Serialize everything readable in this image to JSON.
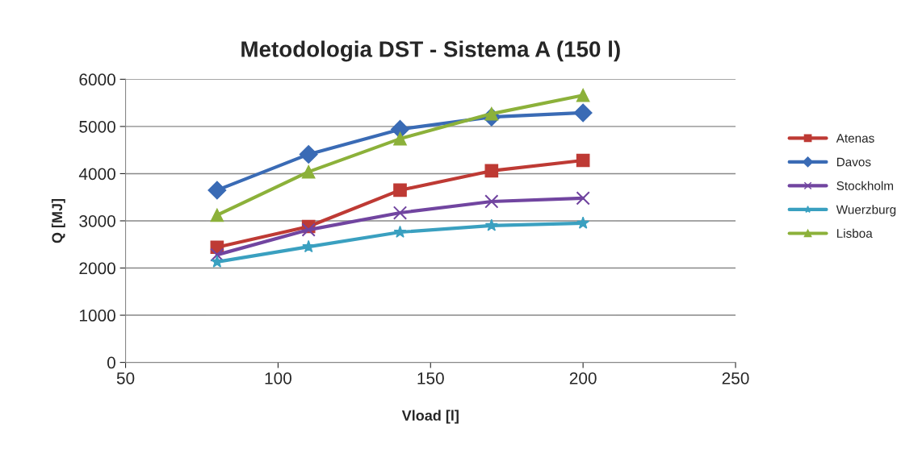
{
  "chart_data": {
    "type": "line",
    "title": "Metodologia DST - Sistema A (150 l)",
    "xlabel": "Vload [l]",
    "ylabel": "Q [MJ]",
    "x": [
      80,
      110,
      140,
      170,
      200
    ],
    "series": [
      {
        "name": "Atenas",
        "color": "#be3a34",
        "marker": "square",
        "values": [
          2440,
          2880,
          3650,
          4060,
          4280
        ]
      },
      {
        "name": "Davos",
        "color": "#3a6bb5",
        "marker": "diamond",
        "values": [
          3650,
          4410,
          4940,
          5200,
          5290
        ]
      },
      {
        "name": "Stockholm",
        "color": "#7145a0",
        "marker": "cross",
        "values": [
          2280,
          2810,
          3170,
          3410,
          3480
        ]
      },
      {
        "name": "Wuerzburg",
        "color": "#3aa0c0",
        "marker": "star",
        "values": [
          2130,
          2450,
          2760,
          2900,
          2950
        ]
      },
      {
        "name": "Lisboa",
        "color": "#8cb13a",
        "marker": "triangle",
        "values": [
          3120,
          4040,
          4740,
          5270,
          5660
        ]
      }
    ],
    "xlim": [
      50,
      250
    ],
    "xticks": [
      50,
      100,
      150,
      200,
      250
    ],
    "ylim": [
      0,
      6000
    ],
    "yticks": [
      0,
      1000,
      2000,
      3000,
      4000,
      5000,
      6000
    ],
    "grid": "y",
    "legend": "right",
    "line_style": "solid"
  }
}
